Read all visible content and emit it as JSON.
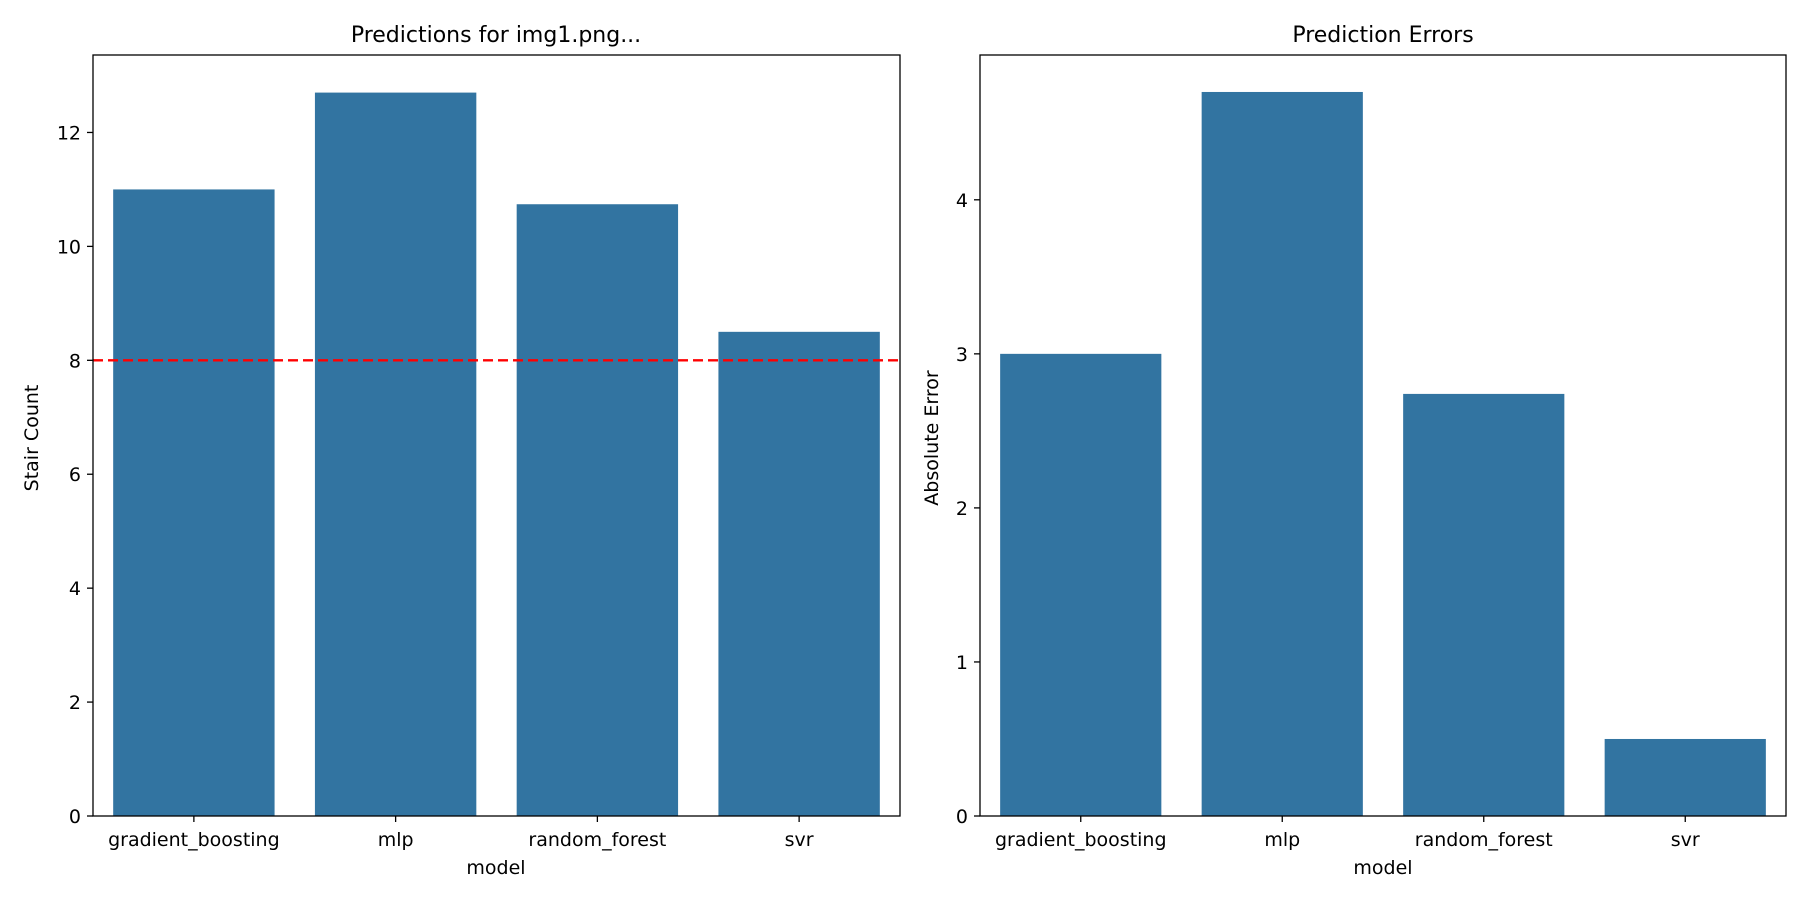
{
  "colors": {
    "bar": "#3274a1",
    "reference_line": "#ff0000",
    "axis": "#000000",
    "background": "#ffffff"
  },
  "chart_data": [
    {
      "type": "bar",
      "title": "Predictions for img1.png...",
      "xlabel": "model",
      "ylabel": "Stair Count",
      "categories": [
        "gradient_boosting",
        "mlp",
        "random_forest",
        "svr"
      ],
      "values": [
        11.0,
        12.7,
        10.74,
        8.5
      ],
      "ylim": [
        0,
        13.36
      ],
      "yticks": [
        0,
        2,
        4,
        6,
        8,
        10,
        12
      ],
      "reference_line": {
        "y": 8,
        "style": "dashed",
        "color": "#ff0000"
      },
      "grid": false
    },
    {
      "type": "bar",
      "title": "Prediction Errors",
      "xlabel": "model",
      "ylabel": "Absolute Error",
      "categories": [
        "gradient_boosting",
        "mlp",
        "random_forest",
        "svr"
      ],
      "values": [
        3.0,
        4.7,
        2.74,
        0.5
      ],
      "ylim": [
        0,
        4.94
      ],
      "yticks": [
        0,
        1,
        2,
        3,
        4
      ],
      "grid": false
    }
  ]
}
